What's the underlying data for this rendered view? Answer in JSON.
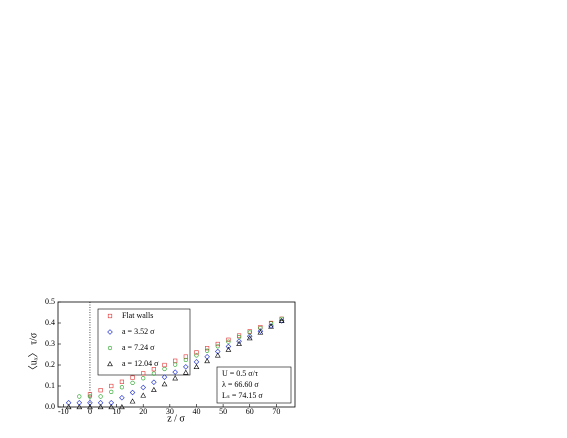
{
  "chart_data": {
    "type": "scatter",
    "xlabel": "z / σ",
    "ylabel": "〈uₓ〉 τ/σ",
    "xlim": [
      -12,
      77
    ],
    "ylim": [
      0,
      0.5
    ],
    "xticks": [
      -10,
      0,
      10,
      20,
      30,
      40,
      50,
      60,
      70
    ],
    "yticks": [
      {
        "value": 0,
        "label": "0.0"
      },
      0.1,
      0.2,
      0.3,
      0.4,
      0.5
    ],
    "vline": 0,
    "annotations": [
      "U = 0.5 σ/τ",
      "λ = 66.60 σ",
      "Lₛ = 74.15 σ"
    ],
    "series": [
      {
        "name": "Flat walls",
        "color": "#e03030",
        "marker": "square",
        "x": [
          0,
          4,
          8,
          12,
          16,
          20,
          24,
          28,
          32,
          36,
          40,
          44,
          48,
          52,
          56,
          60,
          64,
          68,
          72
        ],
        "values": [
          0.06,
          0.08,
          0.1,
          0.12,
          0.14,
          0.16,
          0.18,
          0.2,
          0.22,
          0.24,
          0.26,
          0.28,
          0.3,
          0.32,
          0.34,
          0.36,
          0.38,
          0.4,
          0.42
        ]
      },
      {
        "name": "a = 3.52 σ",
        "color": "#2030d0",
        "marker": "diamond",
        "x": [
          -8,
          -4,
          0,
          4,
          8,
          12,
          16,
          20,
          24,
          28,
          32,
          36,
          40,
          44,
          48,
          52,
          56,
          60,
          64,
          68,
          72
        ],
        "values": [
          0.02,
          0.02,
          0.02,
          0.02,
          0.02,
          0.044,
          0.069,
          0.093,
          0.118,
          0.142,
          0.166,
          0.191,
          0.215,
          0.239,
          0.264,
          0.288,
          0.313,
          0.337,
          0.361,
          0.386,
          0.41
        ]
      },
      {
        "name": "a = 7.24 σ",
        "color": "#20a020",
        "marker": "circle",
        "x": [
          -4,
          0,
          4,
          8,
          12,
          16,
          20,
          24,
          28,
          32,
          36,
          40,
          44,
          48,
          52,
          56,
          60,
          64,
          68,
          72
        ],
        "values": [
          0.05,
          0.05,
          0.05,
          0.072,
          0.094,
          0.115,
          0.137,
          0.159,
          0.181,
          0.202,
          0.224,
          0.246,
          0.268,
          0.289,
          0.311,
          0.333,
          0.355,
          0.376,
          0.398,
          0.42
        ]
      },
      {
        "name": "a = 12.04 σ",
        "color": "#000000",
        "marker": "triangle",
        "x": [
          -8,
          -4,
          0,
          4,
          8,
          12,
          16,
          20,
          24,
          28,
          32,
          36,
          40,
          44,
          48,
          52,
          56,
          60,
          64,
          68,
          72
        ],
        "values": [
          0,
          0,
          0,
          0,
          0,
          0,
          0.027,
          0.055,
          0.082,
          0.109,
          0.137,
          0.164,
          0.191,
          0.219,
          0.246,
          0.273,
          0.301,
          0.328,
          0.355,
          0.383,
          0.41
        ]
      }
    ]
  }
}
